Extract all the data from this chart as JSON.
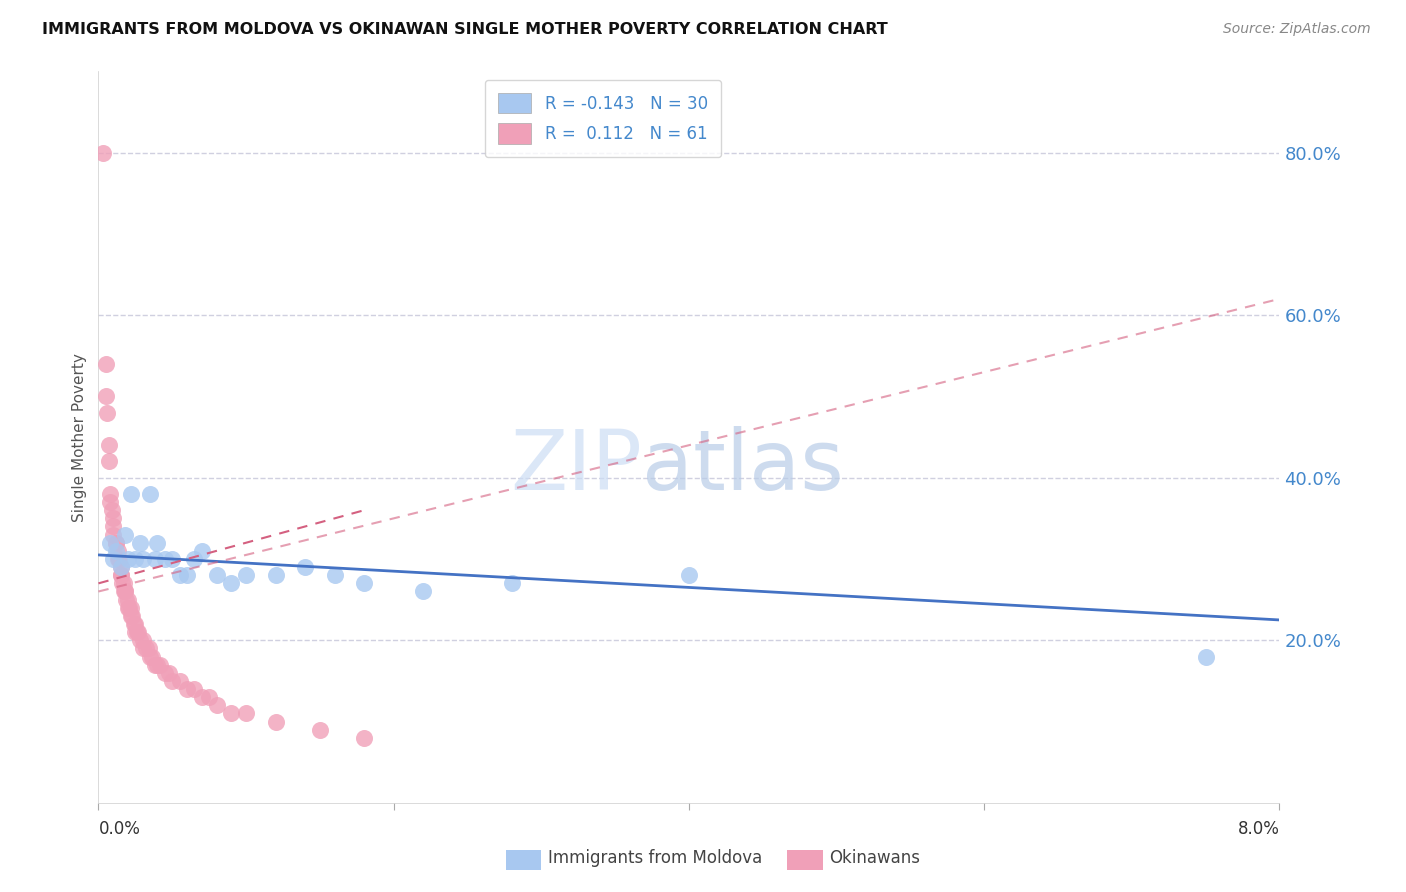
{
  "title": "IMMIGRANTS FROM MOLDOVA VS OKINAWAN SINGLE MOTHER POVERTY CORRELATION CHART",
  "source": "Source: ZipAtlas.com",
  "ylabel": "Single Mother Poverty",
  "right_yticks": [
    20.0,
    40.0,
    60.0,
    80.0
  ],
  "blue_color": "#a8c8f0",
  "pink_color": "#f0a0b8",
  "blue_line_color": "#4472c4",
  "pink_line_color": "#d46080",
  "grid_color": "#d0d0e0",
  "right_tick_color": "#4488cc",
  "background": "#ffffff",
  "xlim": [
    0.0,
    0.08
  ],
  "ylim": [
    0.0,
    0.9
  ],
  "blue_scatter_x": [
    0.0008,
    0.001,
    0.0012,
    0.0015,
    0.0018,
    0.002,
    0.0022,
    0.0025,
    0.0028,
    0.003,
    0.0035,
    0.0038,
    0.004,
    0.0045,
    0.005,
    0.0055,
    0.006,
    0.0065,
    0.007,
    0.008,
    0.009,
    0.01,
    0.012,
    0.014,
    0.016,
    0.018,
    0.022,
    0.028,
    0.04,
    0.075
  ],
  "blue_scatter_y": [
    0.32,
    0.3,
    0.31,
    0.29,
    0.33,
    0.3,
    0.38,
    0.3,
    0.32,
    0.3,
    0.38,
    0.3,
    0.32,
    0.3,
    0.3,
    0.28,
    0.28,
    0.3,
    0.31,
    0.28,
    0.27,
    0.28,
    0.28,
    0.29,
    0.28,
    0.27,
    0.26,
    0.27,
    0.28,
    0.18
  ],
  "pink_scatter_x": [
    0.0003,
    0.0005,
    0.0005,
    0.0006,
    0.0007,
    0.0007,
    0.0008,
    0.0008,
    0.0009,
    0.001,
    0.001,
    0.001,
    0.0012,
    0.0012,
    0.0013,
    0.0013,
    0.0014,
    0.0015,
    0.0015,
    0.0015,
    0.0016,
    0.0017,
    0.0017,
    0.0018,
    0.0018,
    0.0019,
    0.002,
    0.002,
    0.0021,
    0.0022,
    0.0022,
    0.0023,
    0.0024,
    0.0025,
    0.0025,
    0.0026,
    0.0027,
    0.0028,
    0.003,
    0.003,
    0.0032,
    0.0034,
    0.0035,
    0.0036,
    0.0038,
    0.004,
    0.0042,
    0.0045,
    0.0048,
    0.005,
    0.0055,
    0.006,
    0.0065,
    0.007,
    0.0075,
    0.008,
    0.009,
    0.01,
    0.012,
    0.015,
    0.018
  ],
  "pink_scatter_y": [
    0.8,
    0.54,
    0.5,
    0.48,
    0.44,
    0.42,
    0.38,
    0.37,
    0.36,
    0.35,
    0.34,
    0.33,
    0.32,
    0.32,
    0.31,
    0.3,
    0.3,
    0.29,
    0.28,
    0.28,
    0.27,
    0.27,
    0.26,
    0.26,
    0.26,
    0.25,
    0.25,
    0.24,
    0.24,
    0.24,
    0.23,
    0.23,
    0.22,
    0.22,
    0.21,
    0.21,
    0.21,
    0.2,
    0.2,
    0.19,
    0.19,
    0.19,
    0.18,
    0.18,
    0.17,
    0.17,
    0.17,
    0.16,
    0.16,
    0.15,
    0.15,
    0.14,
    0.14,
    0.13,
    0.13,
    0.12,
    0.11,
    0.11,
    0.1,
    0.09,
    0.08
  ],
  "blue_line_x": [
    0.0,
    0.08
  ],
  "blue_line_y": [
    0.305,
    0.225
  ],
  "pink_line_x": [
    0.0,
    0.018
  ],
  "pink_line_y": [
    0.27,
    0.36
  ]
}
